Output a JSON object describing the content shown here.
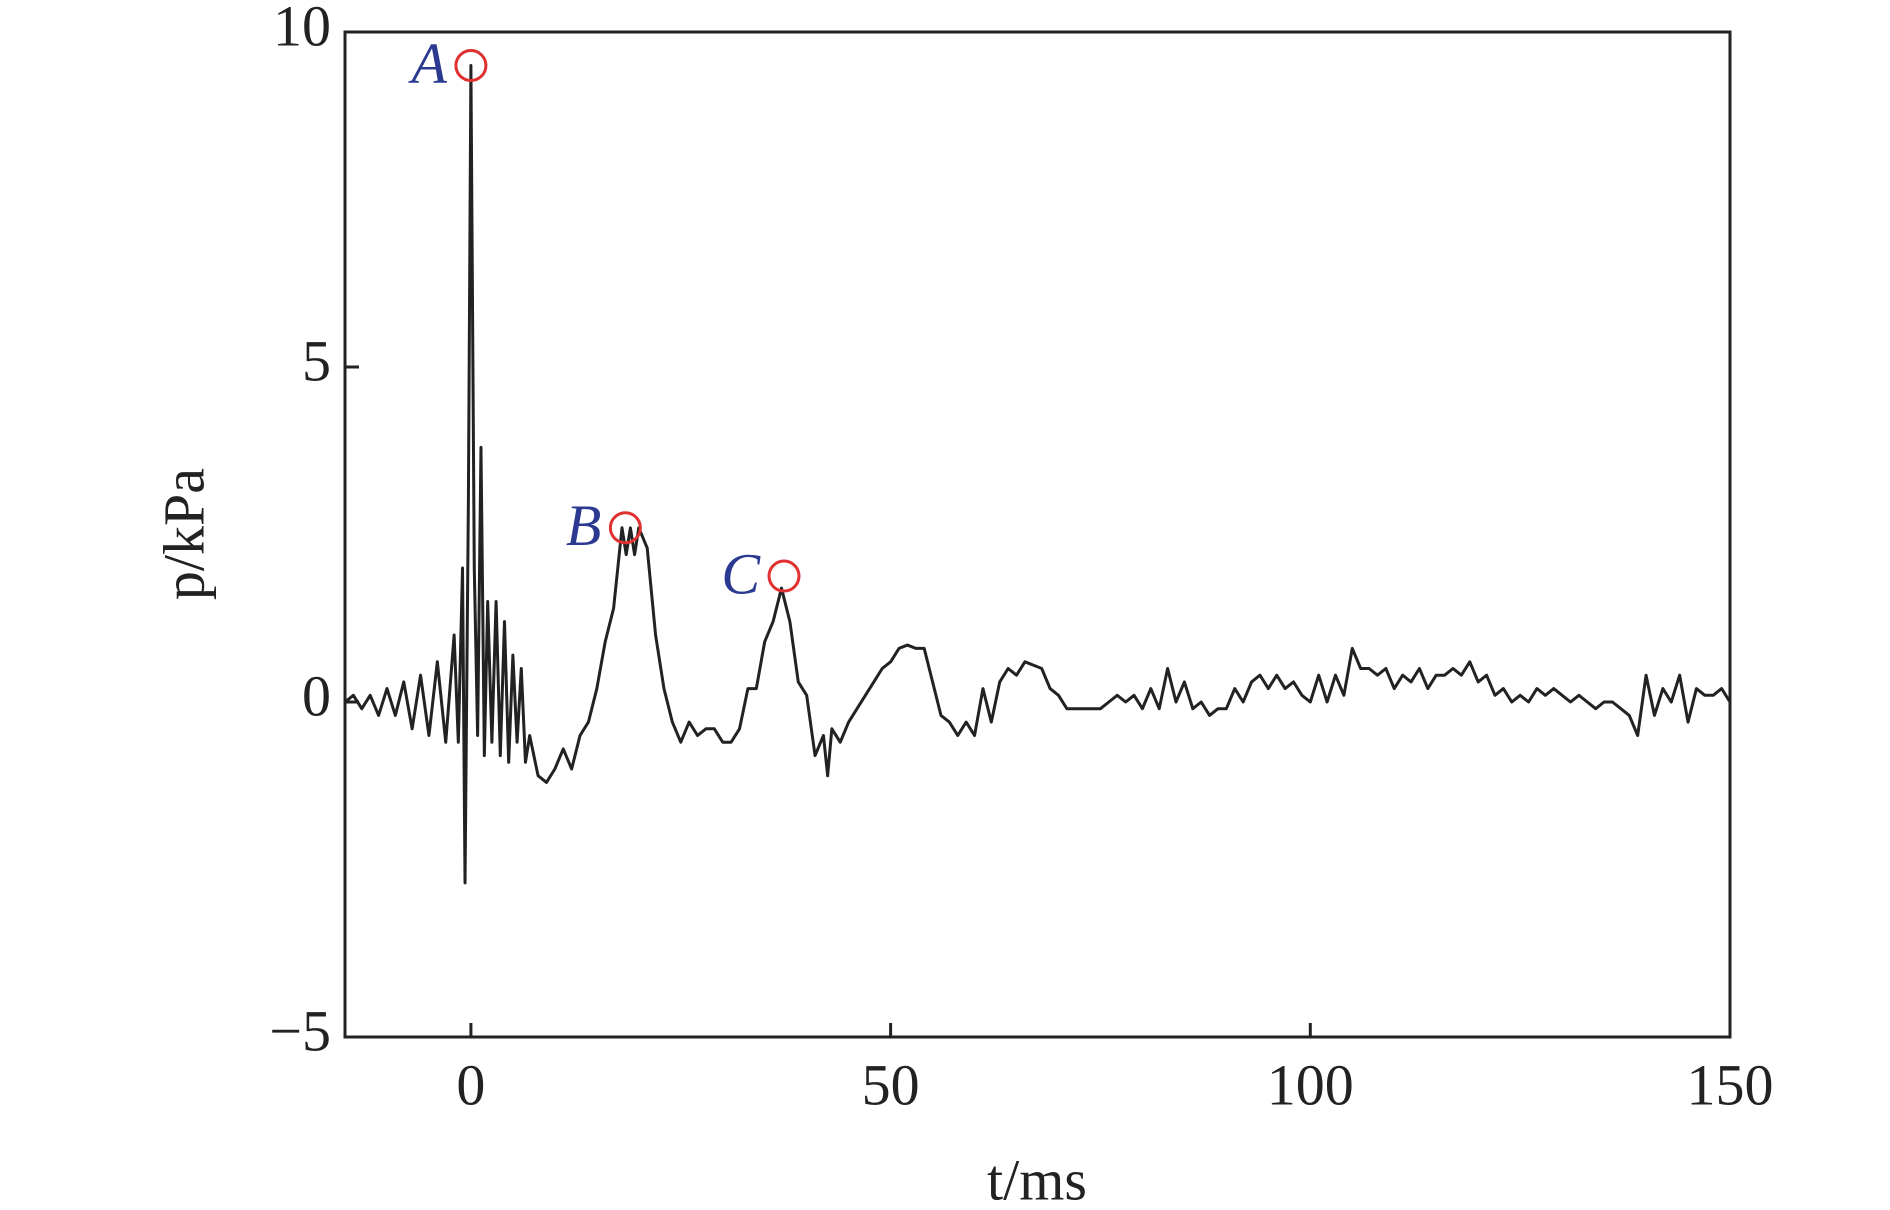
{
  "chart_data": {
    "type": "line",
    "xlabel": "t/ms",
    "ylabel": "p/kPa",
    "xlim": [
      -15,
      150
    ],
    "ylim": [
      -5,
      10
    ],
    "xticks": [
      0,
      50,
      100,
      150
    ],
    "yticks": [
      {
        "value": -5,
        "label": "−5"
      },
      0,
      5,
      10
    ],
    "series": [
      {
        "color": "#222222",
        "x": [
          -15,
          -14,
          -13,
          -12,
          -11,
          -10,
          -9,
          -8,
          -7,
          -6,
          -5,
          -4,
          -3,
          -2,
          -1.5,
          -1,
          -0.7,
          -0.3,
          0,
          0.4,
          0.8,
          1.2,
          1.6,
          2,
          2.5,
          3,
          3.5,
          4,
          4.5,
          5,
          5.5,
          6,
          6.5,
          7,
          8,
          9,
          10,
          11,
          12,
          13,
          14,
          15,
          16,
          17,
          17.5,
          18,
          18.5,
          19,
          19.5,
          20,
          21,
          22,
          23,
          24,
          25,
          26,
          27,
          28,
          29,
          30,
          31,
          32,
          33,
          34,
          35,
          36,
          37,
          38,
          39,
          40,
          41,
          42,
          42.5,
          43,
          44,
          45,
          46,
          47,
          48,
          49,
          50,
          51,
          52,
          53,
          54,
          55,
          56,
          57,
          58,
          59,
          60,
          61,
          62,
          63,
          64,
          65,
          66,
          67,
          68,
          69,
          70,
          71,
          72,
          73,
          74,
          75,
          76,
          77,
          78,
          79,
          80,
          81,
          82,
          83,
          84,
          85,
          86,
          87,
          88,
          89,
          90,
          91,
          92,
          93,
          94,
          95,
          96,
          97,
          98,
          99,
          100,
          101,
          102,
          103,
          104,
          105,
          106,
          107,
          108,
          109,
          110,
          111,
          112,
          113,
          114,
          115,
          116,
          117,
          118,
          119,
          120,
          121,
          122,
          123,
          124,
          125,
          126,
          127,
          128,
          129,
          130,
          131,
          132,
          133,
          134,
          135,
          136,
          137,
          138,
          139,
          140,
          141,
          142,
          143,
          144,
          145,
          146,
          147,
          148,
          149,
          150
        ],
        "values": [
          0,
          0.1,
          -0.1,
          0.1,
          -0.2,
          0.2,
          -0.2,
          0.3,
          -0.4,
          0.4,
          -0.5,
          0.6,
          -0.6,
          1.0,
          -0.6,
          2.0,
          -2.7,
          3.0,
          9.5,
          2.0,
          -0.5,
          3.8,
          -0.8,
          1.5,
          -0.6,
          1.5,
          -0.8,
          1.2,
          -0.9,
          0.7,
          -0.6,
          0.5,
          -0.9,
          -0.5,
          -1.1,
          -1.2,
          -1.0,
          -0.7,
          -1.0,
          -0.5,
          -0.3,
          0.2,
          0.9,
          1.4,
          2.0,
          2.6,
          2.2,
          2.6,
          2.2,
          2.6,
          2.3,
          1.0,
          0.2,
          -0.3,
          -0.6,
          -0.3,
          -0.5,
          -0.4,
          -0.4,
          -0.6,
          -0.6,
          -0.4,
          0.2,
          0.2,
          0.9,
          1.2,
          1.7,
          1.2,
          0.3,
          0.1,
          -0.8,
          -0.5,
          -1.1,
          -0.4,
          -0.6,
          -0.3,
          -0.1,
          0.1,
          0.3,
          0.5,
          0.6,
          0.8,
          0.85,
          0.8,
          0.8,
          0.3,
          -0.2,
          -0.3,
          -0.5,
          -0.3,
          -0.5,
          0.2,
          -0.3,
          0.3,
          0.5,
          0.4,
          0.6,
          0.55,
          0.5,
          0.2,
          0.1,
          -0.1,
          -0.1,
          -0.1,
          -0.1,
          -0.1,
          0.0,
          0.1,
          0.0,
          0.1,
          -0.1,
          0.2,
          -0.1,
          0.5,
          0.0,
          0.3,
          -0.1,
          0.0,
          -0.2,
          -0.1,
          -0.1,
          0.2,
          0.0,
          0.3,
          0.4,
          0.2,
          0.4,
          0.2,
          0.3,
          0.1,
          0.0,
          0.4,
          0.0,
          0.4,
          0.1,
          0.8,
          0.5,
          0.5,
          0.4,
          0.5,
          0.2,
          0.4,
          0.3,
          0.5,
          0.2,
          0.4,
          0.4,
          0.5,
          0.4,
          0.6,
          0.3,
          0.4,
          0.1,
          0.2,
          0.0,
          0.1,
          0.0,
          0.2,
          0.1,
          0.2,
          0.1,
          0.0,
          0.1,
          0.0,
          -0.1,
          0.0,
          0.0,
          -0.1,
          -0.2,
          -0.5,
          0.4,
          -0.2,
          0.2,
          0.0,
          0.4,
          -0.3,
          0.2,
          0.1,
          0.1,
          0.2,
          0.0
        ]
      }
    ],
    "annotations": [
      {
        "text": "A",
        "x": 0,
        "y": 9.5
      },
      {
        "text": "B",
        "x": 18.4,
        "y": 2.6
      },
      {
        "text": "C",
        "x": 37.3,
        "y": 1.88
      }
    ],
    "annotation_color": "#2b3990",
    "marker_color": "#e03030"
  }
}
